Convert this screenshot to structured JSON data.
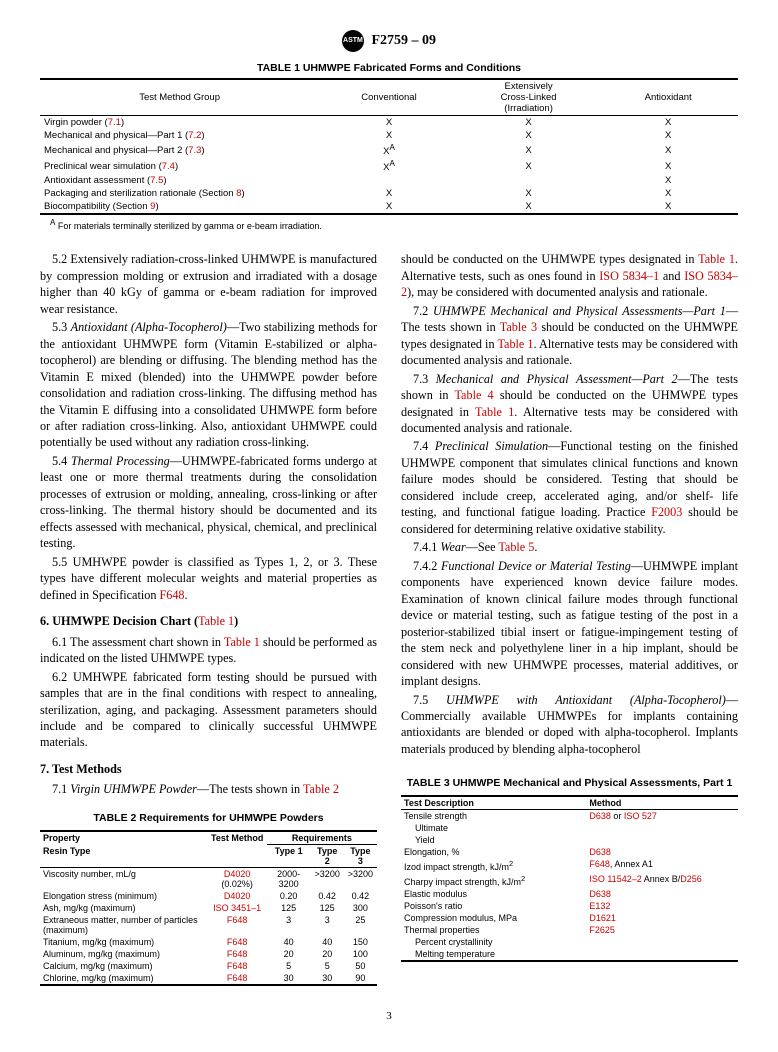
{
  "doc": {
    "designation": "F2759 – 09",
    "page_number": "3"
  },
  "table1": {
    "title": "TABLE 1  UHMWPE Fabricated Forms and Conditions",
    "headers": [
      "Test Method Group",
      "Conventional",
      "Extensively Cross-Linked (Irradiation)",
      "Antioxidant"
    ],
    "rows": [
      {
        "label": "Virgin powder (",
        "ref": "7.1",
        "label2": ")",
        "c": "X",
        "e": "X",
        "a": "X"
      },
      {
        "label": "Mechanical and physical—Part 1 (",
        "ref": "7.2",
        "label2": ")",
        "c": "X",
        "e": "X",
        "a": "X"
      },
      {
        "label": "Mechanical and physical—Part 2 (",
        "ref": "7.3",
        "label2": ")",
        "c": "X",
        "csup": "A",
        "e": "X",
        "a": "X"
      },
      {
        "label": "Preclinical wear simulation (",
        "ref": "7.4",
        "label2": ")",
        "c": "X",
        "csup": "A",
        "e": "X",
        "a": "X"
      },
      {
        "label": "Antioxidant assessment (",
        "ref": "7.5",
        "label2": ")",
        "c": "",
        "e": "",
        "a": "X"
      },
      {
        "label": "Packaging and sterilization rationale (Section ",
        "ref": "8",
        "label2": ")",
        "c": "X",
        "e": "X",
        "a": "X"
      },
      {
        "label": "Biocompatibility (Section ",
        "ref": "9",
        "label2": ")",
        "c": "X",
        "e": "X",
        "a": "X"
      }
    ],
    "footnote_sup": "A",
    "footnote": " For materials terminally sterilized by gamma or e-beam irradiation."
  },
  "body": {
    "p52": "5.2 Extensively radiation-cross-linked UHMWPE is manufactured by compression molding or extrusion and irradiated with a dosage higher than 40 kGy of gamma or e-beam radiation for improved wear resistance.",
    "p53_lead": "5.3 ",
    "p53_head": "Antioxidant (Alpha-Tocopherol)",
    "p53_body": "—Two stabilizing methods for the antioxidant UHMWPE form (Vitamin E-stabilized or alpha-tocopherol) are blending or diffusing. The blending method has the Vitamin E mixed (blended) into the UHMWPE powder before consolidation and radiation cross-linking. The diffusing method has the Vitamin E diffusing into a consolidated UHMWPE form before or after radiation cross-linking. Also, antioxidant UHMWPE could potentially be used without any radiation cross-linking.",
    "p54_lead": "5.4 ",
    "p54_head": "Thermal Processing",
    "p54_body": "—UHMWPE-fabricated forms undergo at least one or more thermal treatments during the consolidation processes of extrusion or molding, annealing, cross-linking or after cross-linking. The thermal history should be documented and its effects assessed with mechanical, physical, chemical, and preclinical testing.",
    "p55a": "5.5 UMHWPE powder is classified as Types 1, 2, or 3. These types have different molecular weights and material properties as defined in Specification ",
    "p55_ref": "F648",
    "p55b": ".",
    "s6_head": "6. UHMWPE Decision Chart (",
    "s6_ref": "Table 1",
    "s6_head2": ")",
    "p61a": "6.1 The assessment chart shown in ",
    "p61_ref": "Table 1",
    "p61b": " should be performed as indicated on the listed UHMWPE types.",
    "p62": "6.2 UMHWPE fabricated form testing should be pursued with samples that are in the final conditions with respect to annealing, sterilization, aging, and packaging. Assessment parameters should include and be compared to clinically successful UHMWPE materials.",
    "s7_head": "7. Test Methods",
    "p71_lead": "7.1 ",
    "p71_head": "Virgin UHMWPE Powder",
    "p71a": "—The tests shown in ",
    "p71_ref": "Table 2",
    "r1a": "should be conducted on the UHMWPE types designated in ",
    "r1_ref1": "Table 1",
    "r1b": ". Alternative tests, such as ones found in ",
    "r1_ref2": "ISO 5834–1",
    "r1c": " and ",
    "r1_ref3": "ISO 5834–2",
    "r1d": "), may be considered with documented analysis and rationale.",
    "p72_lead": "7.2 ",
    "p72_head": "UHMWPE Mechanical and Physical Assessments—Part 1",
    "p72a": "—The tests shown in ",
    "p72_ref1": "Table 3",
    "p72b": " should be conducted on the UHMWPE types designated in ",
    "p72_ref2": "Table 1",
    "p72c": ". Alternative tests may be considered with documented analysis and rationale.",
    "p73_lead": "7.3 ",
    "p73_head": "Mechanical and Physical Assessment—Part 2",
    "p73a": "—The tests shown in ",
    "p73_ref1": "Table 4",
    "p73b": " should be conducted on the UHMWPE types designated in ",
    "p73_ref2": "Table 1",
    "p73c": ". Alternative tests may be considered with documented analysis and rationale.",
    "p74_lead": "7.4 ",
    "p74_head": "Preclinical Simulation",
    "p74a": "—Functional testing on the finished UHMWPE component that simulates clinical functions and known failure modes should be considered. Testing that should be considered include creep, accelerated aging, and/or shelf- life testing, and functional fatigue loading. Practice ",
    "p74_ref": "F2003",
    "p74b": " should be considered for determining relative oxidative stability.",
    "p741_lead": "7.4.1 ",
    "p741_head": "Wear",
    "p741a": "—See ",
    "p741_ref": "Table 5",
    "p741b": ".",
    "p742_lead": "7.4.2 ",
    "p742_head": "Functional Device or Material Testing",
    "p742_body": "—UHMWPE implant components have experienced known device failure modes. Examination of known clinical failure modes through functional device or material testing, such as fatigue testing of the post in a posterior-stabilized tibial insert or fatigue-impingement testing of the stem neck and polyethylene liner in a hip implant, should be considered with new UHMWPE processes, material additives, or implant designs.",
    "p75_lead": "7.5 ",
    "p75_head": "UHMWPE with Antioxidant (Alpha-Tocopherol)",
    "p75_body": "—Commercially available UHMWPEs for implants containing antioxidants are blended or doped with alpha-tocopherol. Implants materials produced by blending alpha-tocopherol"
  },
  "table2": {
    "title": "TABLE 2  Requirements for UHMWPE Powders",
    "h_property": "Property",
    "h_method": "Test Method",
    "h_requirements": "Requirements",
    "h_resin": "Resin Type",
    "h_t1": "Type 1",
    "h_t2": "Type 2",
    "h_t3": "Type 3",
    "rows": [
      {
        "p": "Viscosity number, mL/g",
        "m": "D4020",
        "mx": " (0.02%)",
        "t1": "2000-3200",
        "t2": ">3200",
        "t3": ">3200"
      },
      {
        "p": "Elongation stress (minimum)",
        "m": "D4020",
        "t1": "0.20",
        "t2": "0.42",
        "t3": "0.42"
      },
      {
        "p": "Ash, mg/kg (maximum)",
        "m": "ISO 3451–1",
        "t1": "125",
        "t2": "125",
        "t3": "300"
      },
      {
        "p": "Extraneous matter, number of particles (maximum)",
        "m": "F648",
        "t1": "3",
        "t2": "3",
        "t3": "25"
      },
      {
        "p": "Titanium, mg/kg (maximum)",
        "m": "F648",
        "t1": "40",
        "t2": "40",
        "t3": "150"
      },
      {
        "p": "Aluminum, mg/kg (maximum)",
        "m": "F648",
        "t1": "20",
        "t2": "20",
        "t3": "100"
      },
      {
        "p": "Calcium, mg/kg (maximum)",
        "m": "F648",
        "t1": "5",
        "t2": "5",
        "t3": "50"
      },
      {
        "p": "Chlorine, mg/kg (maximum)",
        "m": "F648",
        "t1": "30",
        "t2": "30",
        "t3": "90"
      }
    ]
  },
  "table3": {
    "title": "TABLE 3  UHMWPE Mechanical and Physical Assessments, Part 1",
    "h_desc": "Test Description",
    "h_method": "Method",
    "rows": [
      {
        "d": "Tensile strength",
        "m1": "D638",
        "or": " or ",
        "m2": "ISO 527"
      },
      {
        "d": "Ultimate",
        "indent": true
      },
      {
        "d": "Yield",
        "indent": true
      },
      {
        "d": "Elongation, %",
        "m1": "D638"
      },
      {
        "d": "Izod impact strength, kJ/m",
        "sup": "2",
        "m1": "F648",
        "mx": ", Annex A1"
      },
      {
        "d": "Charpy impact strength, kJ/m",
        "sup": "2",
        "m1": "ISO 11542–2",
        "mx": " Annex B/",
        "m2": "D256"
      },
      {
        "d": "Elastic modulus",
        "m1": "D638"
      },
      {
        "d": "Poisson's ratio",
        "m1": "E132"
      },
      {
        "d": "Compression modulus, MPa",
        "m1": "D1621"
      },
      {
        "d": "Thermal properties",
        "m1": "F2625"
      },
      {
        "d": "Percent crystallinity",
        "indent": true
      },
      {
        "d": "Melting temperature",
        "indent": true
      }
    ]
  }
}
